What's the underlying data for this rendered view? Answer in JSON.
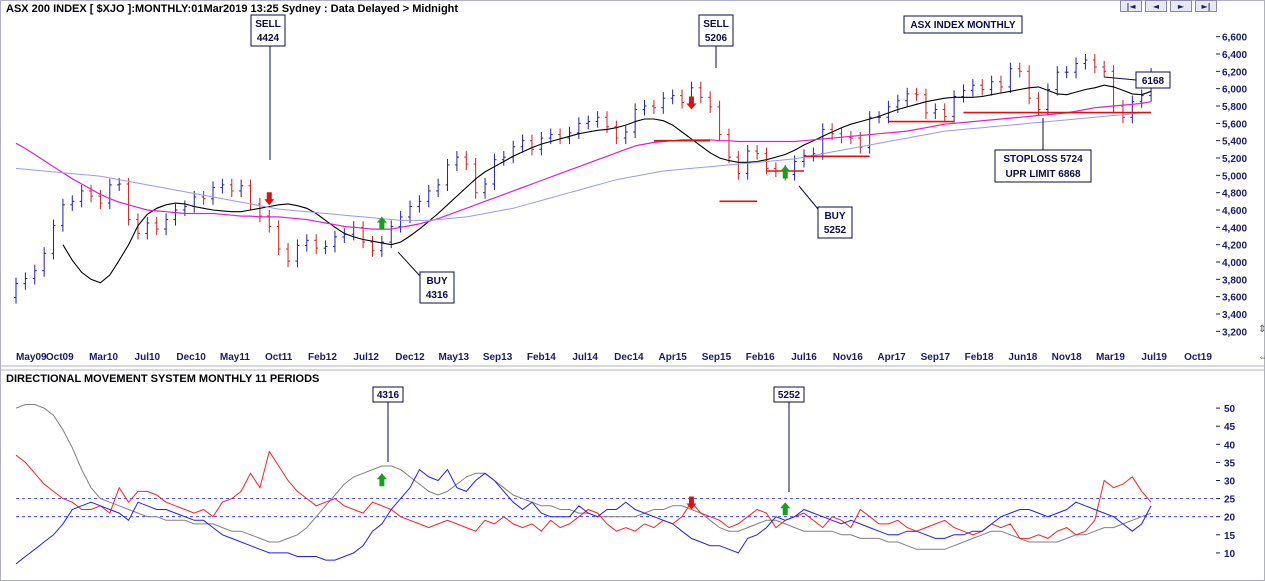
{
  "title_main": "ASX 200 INDEX [ $XJO ]:MONTHLY:01Mar2019 13:25 Sydney : Data Delayed > Midnight",
  "title_lower": "DIRECTIONAL MOVEMENT SYSTEM MONTHLY 11 PERIODS",
  "nav_buttons": [
    "|◄",
    "◄",
    "►",
    "►|"
  ],
  "colors": {
    "up_bar": "#1f1fb0",
    "down_bar": "#d02020",
    "avg_short": "#000000",
    "avg_mid": "#e020d0",
    "avg_long": "#9a9aee",
    "adx": "#808080",
    "plus_di": "#2020ff",
    "minus_di": "#ff2020",
    "level": "#2020ff",
    "arrow_buy": "#18a018",
    "arrow_sell": "#e01010",
    "support_line": "#e01010"
  },
  "annotations": {
    "sell1": [
      "SELL",
      "4424"
    ],
    "sell2": [
      "SELL",
      "5206"
    ],
    "buy1": [
      "BUY",
      "4316"
    ],
    "buy2": [
      "BUY",
      "5252"
    ],
    "index_label": "ASX INDEX MONTHLY",
    "stoploss": [
      "STOPLOSS 5724",
      "UPR LIMIT 6868"
    ],
    "last_price": "6168",
    "dms1": "4316",
    "dms2": "5252"
  },
  "chart_data": [
    {
      "type": "line",
      "title": "ASX 200 INDEX [ $XJO ]:MONTHLY:01Mar2019 13:25 Sydney : Data Delayed > Midnight",
      "x_tick_labels": [
        "May09",
        "Oct09",
        "Mar10",
        "Jul10",
        "Dec10",
        "May11",
        "Oct11",
        "Feb12",
        "Jul12",
        "Dec12",
        "May13",
        "Sep13",
        "Feb14",
        "Jul14",
        "Dec14",
        "Apr15",
        "Sep15",
        "Feb16",
        "Jul16",
        "Nov16",
        "Apr17",
        "Sep17",
        "Feb18",
        "Jun18",
        "Nov18",
        "Mar19",
        "Jul19",
        "Oct19"
      ],
      "y_ticks": [
        3200,
        3400,
        3600,
        3800,
        4000,
        4200,
        4400,
        4600,
        4800,
        5000,
        5200,
        5400,
        5600,
        5800,
        6000,
        6200,
        6400,
        6600
      ],
      "ylim": [
        3100,
        6700
      ],
      "x_range_months": [
        0,
        126
      ],
      "grid": false,
      "close": [
        3750,
        3810,
        3900,
        4100,
        4420,
        4660,
        4700,
        4820,
        4760,
        4680,
        4890,
        4900,
        4490,
        4330,
        4450,
        4380,
        4490,
        4600,
        4640,
        4750,
        4730,
        4860,
        4890,
        4820,
        4880,
        4670,
        4530,
        4410,
        4150,
        4010,
        4190,
        4250,
        4160,
        4180,
        4290,
        4320,
        4400,
        4230,
        4130,
        4230,
        4410,
        4520,
        4640,
        4700,
        4820,
        4890,
        5120,
        5210,
        5130,
        4800,
        4900,
        5180,
        5210,
        5330,
        5400,
        5300,
        5430,
        5470,
        5430,
        5490,
        5600,
        5620,
        5670,
        5560,
        5430,
        5500,
        5760,
        5800,
        5780,
        5890,
        5920,
        5840,
        6010,
        5900,
        5790,
        5470,
        5210,
        5020,
        5280,
        5250,
        5080,
        5050,
        5010,
        5160,
        5230,
        5250,
        5530,
        5480,
        5440,
        5430,
        5320,
        5670,
        5670,
        5790,
        5860,
        5940,
        5930,
        5720,
        5760,
        5680,
        5910,
        5980,
        6040,
        5990,
        6080,
        6020,
        6230,
        6200,
        5890,
        5760,
        5990,
        6190,
        6190,
        6290,
        6330,
        6250,
        6200,
        5800,
        5670,
        5850,
        5920,
        6170
      ],
      "series": [
        {
          "name": "",
          "values": [
            null,
            null,
            null,
            null,
            null,
            4200,
            4020,
            3880,
            3800,
            3760,
            3850,
            4020,
            4200,
            4420,
            4550,
            4620,
            4660,
            4680,
            4670,
            4640,
            4620,
            4600,
            4590,
            4580,
            4580,
            4600,
            4620,
            4640,
            4660,
            4670,
            4650,
            4620,
            4560,
            4480,
            4400,
            4330,
            4290,
            4260,
            4240,
            4220,
            4200,
            4230,
            4300,
            4380,
            4470,
            4560,
            4660,
            4760,
            4860,
            4960,
            5040,
            5100,
            5160,
            5220,
            5270,
            5320,
            5360,
            5390,
            5420,
            5450,
            5480,
            5500,
            5520,
            5530,
            5550,
            5580,
            5620,
            5650,
            5650,
            5630,
            5580,
            5500,
            5420,
            5340,
            5260,
            5200,
            5170,
            5150,
            5150,
            5160,
            5180,
            5210,
            5240,
            5290,
            5350,
            5400,
            5450,
            5500,
            5550,
            5590,
            5620,
            5650,
            5680,
            5720,
            5760,
            5790,
            5820,
            5850,
            5870,
            5890,
            5900,
            5900,
            5900,
            5910,
            5930,
            5950,
            5970,
            5990,
            6010,
            6020,
            5980,
            5940,
            5930,
            5960,
            5990,
            6010,
            6040,
            6020,
            5980,
            5940,
            5930,
            5970
          ]
        },
        {
          "name": "",
          "values": [
            5370,
            5310,
            5240,
            5170,
            5100,
            5030,
            4960,
            4900,
            4840,
            4780,
            4730,
            4690,
            4660,
            4630,
            4600,
            4590,
            4580,
            4570,
            4560,
            4560,
            4560,
            4560,
            4550,
            4540,
            4530,
            4530,
            4520,
            4520,
            4520,
            4510,
            4500,
            4490,
            4470,
            4450,
            4430,
            4410,
            4400,
            4390,
            4380,
            4380,
            4380,
            4400,
            4420,
            4440,
            4470,
            4500,
            4540,
            4580,
            4620,
            4660,
            4700,
            4740,
            4780,
            4820,
            4860,
            4900,
            4940,
            4980,
            5020,
            5060,
            5100,
            5140,
            5180,
            5220,
            5260,
            5300,
            5340,
            5360,
            5380,
            5390,
            5400,
            5410,
            5410,
            5410,
            5410,
            5400,
            5400,
            5390,
            5390,
            5390,
            5390,
            5390,
            5390,
            5390,
            5400,
            5410,
            5420,
            5430,
            5440,
            5450,
            5460,
            5470,
            5480,
            5490,
            5500,
            5510,
            5530,
            5550,
            5570,
            5590,
            5600,
            5610,
            5620,
            5630,
            5640,
            5650,
            5660,
            5670,
            5680,
            5690,
            5700,
            5710,
            5720,
            5740,
            5760,
            5780,
            5790,
            5800,
            5810,
            5820,
            5830,
            5850
          ]
        },
        {
          "name": "",
          "values": [
            5080,
            5070,
            5060,
            5050,
            5040,
            5030,
            5020,
            5010,
            5000,
            4990,
            4970,
            4950,
            4930,
            4910,
            4890,
            4870,
            4850,
            4830,
            4810,
            4790,
            4770,
            4750,
            4730,
            4710,
            4690,
            4670,
            4650,
            4630,
            4610,
            4600,
            4590,
            4580,
            4570,
            4560,
            4550,
            4540,
            4530,
            4520,
            4510,
            4500,
            4490,
            4480,
            4480,
            4480,
            4480,
            4490,
            4500,
            4510,
            4520,
            4540,
            4560,
            4580,
            4600,
            4620,
            4650,
            4680,
            4710,
            4740,
            4770,
            4800,
            4830,
            4860,
            4890,
            4920,
            4950,
            4970,
            4990,
            5010,
            5030,
            5050,
            5060,
            5070,
            5080,
            5090,
            5100,
            5110,
            5120,
            5130,
            5140,
            5150,
            5160,
            5170,
            5180,
            5190,
            5210,
            5230,
            5250,
            5270,
            5290,
            5310,
            5330,
            5350,
            5370,
            5390,
            5410,
            5430,
            5450,
            5470,
            5490,
            5510,
            5520,
            5530,
            5540,
            5550,
            5560,
            5570,
            5580,
            5590,
            5600,
            5610,
            5620,
            5630,
            5640,
            5650,
            5660,
            5670,
            5680,
            5690,
            5700,
            5710,
            5720,
            5730
          ]
        }
      ],
      "support_levels": [
        {
          "x0": 68,
          "x1": 74,
          "y": 5400
        },
        {
          "x0": 75,
          "x1": 79,
          "y": 4700
        },
        {
          "x0": 80,
          "x1": 84,
          "y": 5050
        },
        {
          "x0": 84,
          "x1": 91,
          "y": 5220
        },
        {
          "x0": 93,
          "x1": 100,
          "y": 5620
        },
        {
          "x0": 101,
          "x1": 121,
          "y": 5724
        }
      ],
      "signals": [
        {
          "kind": "sell",
          "x": 27,
          "price": 4424
        },
        {
          "kind": "buy",
          "x": 39,
          "price": 4316
        },
        {
          "kind": "sell",
          "x": 72,
          "price": 5206
        },
        {
          "kind": "buy",
          "x": 82,
          "price": 5252
        }
      ]
    },
    {
      "type": "line",
      "title": "DIRECTIONAL MOVEMENT SYSTEM MONTHLY 11 PERIODS",
      "y_ticks": [
        10,
        15,
        20,
        25,
        30,
        35,
        40,
        45,
        50
      ],
      "ylim": [
        5,
        55
      ],
      "reference_lines": [
        20,
        25
      ],
      "series": [
        {
          "name": "",
          "values": [
            50,
            51,
            51,
            50,
            48,
            44,
            39,
            33,
            28,
            25,
            24,
            23,
            22,
            21,
            20,
            20,
            19,
            19,
            19,
            18,
            18,
            18,
            17,
            16,
            16,
            15,
            14,
            13,
            13,
            14,
            15,
            17,
            20,
            23,
            26,
            29,
            31,
            32,
            33,
            34,
            34,
            33,
            31,
            29,
            27,
            26,
            27,
            29,
            31,
            32,
            32,
            30,
            28,
            26,
            25,
            24,
            23,
            23,
            22,
            22,
            21,
            21,
            20,
            20,
            20,
            20,
            20,
            21,
            22,
            22,
            23,
            23,
            22,
            21,
            19,
            17,
            16,
            16,
            17,
            18,
            19,
            19,
            18,
            17,
            16,
            16,
            16,
            16,
            15,
            15,
            14,
            14,
            14,
            13,
            13,
            12,
            11,
            11,
            11,
            11,
            12,
            13,
            14,
            15,
            16,
            16,
            15,
            14,
            13,
            13,
            13,
            13,
            14,
            15,
            15,
            16,
            17,
            17,
            18,
            19,
            20,
            21
          ]
        },
        {
          "name": "",
          "values": [
            37,
            35,
            32,
            29,
            27,
            25,
            24,
            22,
            22,
            23,
            21,
            28,
            24,
            27,
            27,
            26,
            24,
            23,
            22,
            21,
            22,
            20,
            24,
            25,
            27,
            32,
            28,
            38,
            34,
            30,
            27,
            25,
            23,
            24,
            25,
            23,
            22,
            21,
            24,
            23,
            22,
            20,
            19,
            18,
            17,
            18,
            19,
            18,
            17,
            16,
            19,
            18,
            20,
            18,
            17,
            18,
            16,
            19,
            17,
            18,
            20,
            22,
            21,
            18,
            16,
            17,
            16,
            18,
            17,
            19,
            18,
            20,
            24,
            21,
            20,
            19,
            17,
            18,
            20,
            22,
            21,
            17,
            19,
            20,
            21,
            19,
            17,
            20,
            19,
            17,
            22,
            20,
            18,
            18,
            19,
            17,
            16,
            17,
            18,
            19,
            17,
            16,
            15,
            16,
            18,
            17,
            18,
            14,
            14,
            15,
            14,
            16,
            17,
            15,
            16,
            19,
            30,
            28,
            29,
            31,
            27,
            24
          ]
        },
        {
          "name": "",
          "values": [
            7,
            9,
            11,
            13,
            15,
            18,
            22,
            23,
            24,
            23,
            22,
            21,
            19,
            24,
            23,
            22,
            22,
            21,
            20,
            19,
            19,
            17,
            15,
            14,
            13,
            12,
            11,
            10,
            10,
            10,
            9,
            9,
            9,
            8,
            8,
            9,
            10,
            12,
            16,
            18,
            22,
            25,
            28,
            33,
            31,
            30,
            33,
            28,
            27,
            30,
            32,
            30,
            27,
            24,
            22,
            24,
            21,
            20,
            20,
            20,
            23,
            21,
            20,
            22,
            22,
            24,
            22,
            21,
            20,
            19,
            18,
            16,
            14,
            13,
            12,
            12,
            11,
            10,
            14,
            15,
            17,
            20,
            19,
            20,
            22,
            21,
            20,
            19,
            18,
            19,
            18,
            17,
            16,
            15,
            15,
            16,
            16,
            15,
            14,
            14,
            15,
            15,
            16,
            16,
            18,
            20,
            21,
            22,
            22,
            21,
            20,
            21,
            22,
            24,
            23,
            22,
            21,
            20,
            18,
            16,
            18,
            23
          ]
        }
      ],
      "signals": [
        {
          "kind": "buy",
          "x": 39
        },
        {
          "kind": "sell",
          "x": 72
        },
        {
          "kind": "buy",
          "x": 82
        }
      ]
    }
  ]
}
